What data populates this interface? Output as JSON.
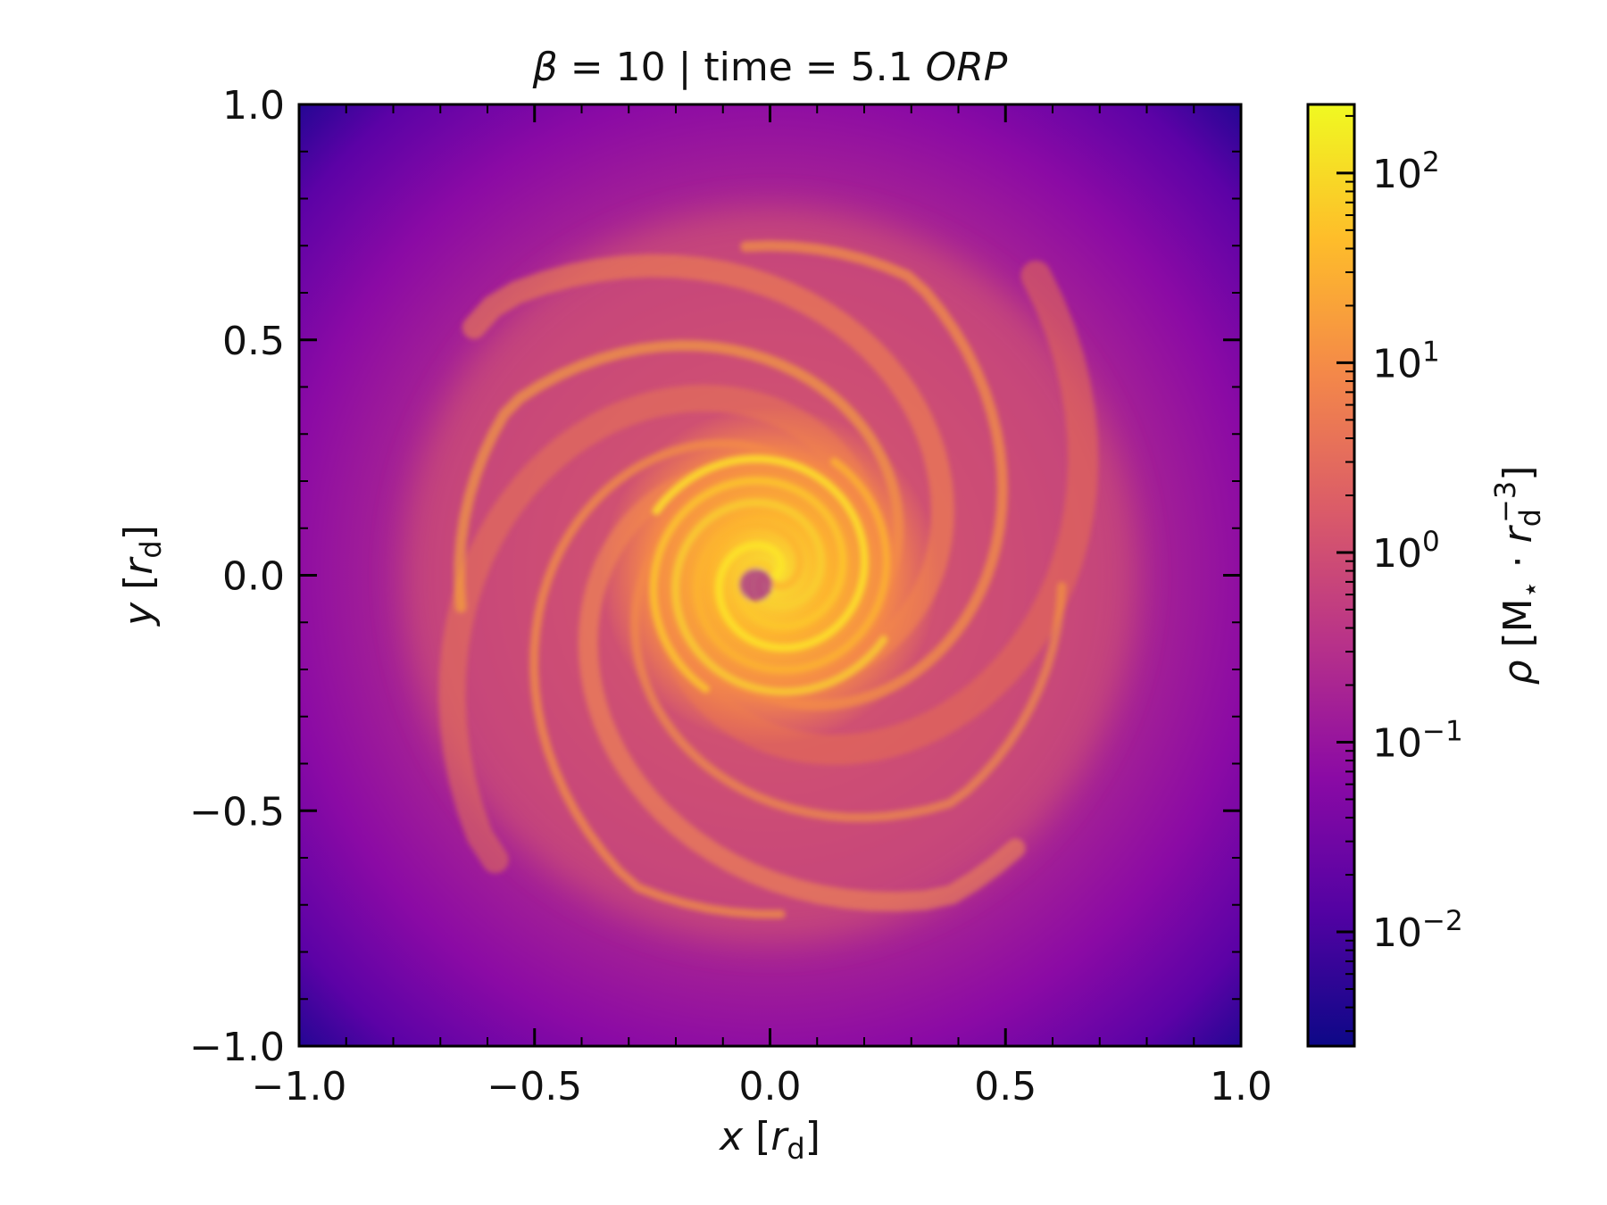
{
  "chart_data": {
    "type": "heatmap",
    "title": {
      "prefix": "β",
      "middle": " = 10 | time = 5.1 ",
      "emph": "ORP"
    },
    "xlabel": {
      "var": "x",
      "unit_open": " [",
      "unit": "r",
      "unit_sub": "d",
      "unit_close": "]"
    },
    "ylabel": {
      "var": "y",
      "unit_open": " [",
      "unit": "r",
      "unit_sub": "d",
      "unit_close": "]"
    },
    "xlim": [
      -1.0,
      1.0
    ],
    "ylim": [
      -1.0,
      1.0
    ],
    "xticks": [
      -1.0,
      -0.5,
      0.0,
      0.5,
      1.0
    ],
    "xtick_labels": [
      "−1.0",
      "−0.5",
      "0.0",
      "0.5",
      "1.0"
    ],
    "yticks": [
      -1.0,
      -0.5,
      0.0,
      0.5,
      1.0
    ],
    "ytick_labels": [
      "−1.0",
      "−0.5",
      "0.0",
      "0.5",
      "1.0"
    ],
    "field": "gas density, face-on disk with logarithmic spiral arms",
    "colormap": "plasma",
    "colorbar": {
      "scale": "log",
      "range": [
        0.0025,
        230
      ],
      "ticks": [
        0.01,
        0.1,
        1,
        10,
        100
      ],
      "tick_labels": [
        {
          "base": "10",
          "exp": "−2"
        },
        {
          "base": "10",
          "exp": "−1"
        },
        {
          "base": "10",
          "exp": "0"
        },
        {
          "base": "10",
          "exp": "1"
        },
        {
          "base": "10",
          "exp": "2"
        }
      ],
      "label": {
        "sym": "ρ",
        "open": " [M",
        "star": "⋆",
        "dot": " · ",
        "r": "r",
        "sub": "d",
        "sup": "−3",
        "close": "]"
      }
    },
    "colors": [
      "#0d0887",
      "#5302a3",
      "#8b0aa5",
      "#b83289",
      "#db5c68",
      "#f48849",
      "#febd2a",
      "#f0f921"
    ]
  }
}
